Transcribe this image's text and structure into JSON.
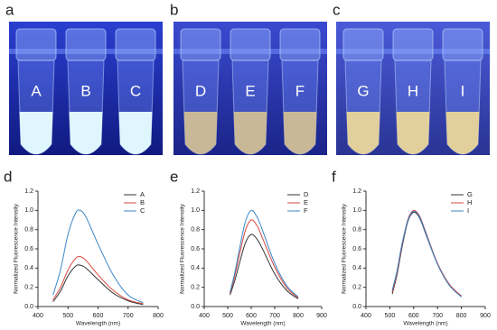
{
  "photos": [
    {
      "label": "a",
      "tubes": [
        "A",
        "B",
        "C"
      ]
    },
    {
      "label": "b",
      "tubes": [
        "D",
        "E",
        "F"
      ]
    },
    {
      "label": "c",
      "tubes": [
        "G",
        "H",
        "I"
      ]
    }
  ],
  "chart_data": [
    {
      "type": "line",
      "label": "d",
      "x_label": "Wavelength (nm)",
      "y_label": "Normalized Fluorescence Intensity",
      "x": [
        450,
        475,
        500,
        525,
        540,
        560,
        600,
        650,
        700,
        750
      ],
      "series": [
        {
          "name": "A",
          "color": "#333333",
          "values": [
            0.05,
            0.16,
            0.32,
            0.42,
            0.43,
            0.4,
            0.28,
            0.14,
            0.06,
            0.02
          ]
        },
        {
          "name": "B",
          "color": "#d9473f",
          "values": [
            0.07,
            0.2,
            0.38,
            0.5,
            0.52,
            0.48,
            0.33,
            0.17,
            0.07,
            0.03
          ]
        },
        {
          "name": "C",
          "color": "#3a86c8",
          "values": [
            0.12,
            0.38,
            0.75,
            0.97,
            1.0,
            0.93,
            0.65,
            0.33,
            0.12,
            0.04
          ]
        }
      ],
      "xlim": [
        400,
        800
      ],
      "xticks": [
        400,
        500,
        600,
        700,
        800
      ],
      "ylim": [
        0,
        1.2
      ],
      "yticks": [
        {
          "value": 0,
          "label": "0.0"
        },
        0.2,
        0.4,
        0.6,
        0.8,
        {
          "value": 1,
          "label": "1.0"
        },
        1.2
      ]
    },
    {
      "type": "line",
      "label": "e",
      "x_label": "Wavelength (nm)",
      "y_label": "Normalized Fluorescence Intensity",
      "x": [
        510,
        530,
        550,
        575,
        600,
        625,
        650,
        700,
        750,
        800
      ],
      "series": [
        {
          "name": "D",
          "color": "#333333",
          "values": [
            0.12,
            0.27,
            0.45,
            0.66,
            0.75,
            0.7,
            0.59,
            0.34,
            0.17,
            0.08
          ]
        },
        {
          "name": "E",
          "color": "#d9473f",
          "values": [
            0.14,
            0.32,
            0.54,
            0.79,
            0.9,
            0.84,
            0.7,
            0.41,
            0.2,
            0.09
          ]
        },
        {
          "name": "F",
          "color": "#3a86c8",
          "values": [
            0.15,
            0.35,
            0.6,
            0.88,
            1.0,
            0.93,
            0.78,
            0.45,
            0.22,
            0.1
          ]
        }
      ],
      "xlim": [
        400,
        900
      ],
      "xticks": [
        400,
        500,
        600,
        700,
        800,
        900
      ],
      "ylim": [
        0,
        1.2
      ],
      "yticks": [
        {
          "value": 0,
          "label": "0.0"
        },
        0.2,
        0.4,
        0.6,
        0.8,
        {
          "value": 1,
          "label": "1.0"
        },
        1.2
      ]
    },
    {
      "type": "line",
      "label": "f",
      "x_label": "Wavelength (nm)",
      "y_label": "Normalized Fluorescence Intensity",
      "x": [
        510,
        530,
        550,
        575,
        600,
        625,
        650,
        700,
        750,
        800
      ],
      "series": [
        {
          "name": "G",
          "color": "#333333",
          "values": [
            0.13,
            0.33,
            0.6,
            0.88,
            0.98,
            0.92,
            0.76,
            0.44,
            0.22,
            0.11
          ]
        },
        {
          "name": "H",
          "color": "#d9473f",
          "values": [
            0.15,
            0.35,
            0.62,
            0.9,
            1.0,
            0.94,
            0.78,
            0.45,
            0.23,
            0.11
          ]
        },
        {
          "name": "I",
          "color": "#3a86c8",
          "values": [
            0.17,
            0.37,
            0.64,
            0.89,
            0.99,
            0.93,
            0.77,
            0.44,
            0.22,
            0.1
          ]
        }
      ],
      "xlim": [
        400,
        900
      ],
      "xticks": [
        400,
        500,
        600,
        700,
        800,
        900
      ],
      "ylim": [
        0,
        1.2
      ],
      "yticks": [
        {
          "value": 0,
          "label": "0.0"
        },
        0.2,
        0.4,
        0.6,
        0.8,
        {
          "value": 1,
          "label": "1.0"
        },
        1.2
      ]
    }
  ]
}
